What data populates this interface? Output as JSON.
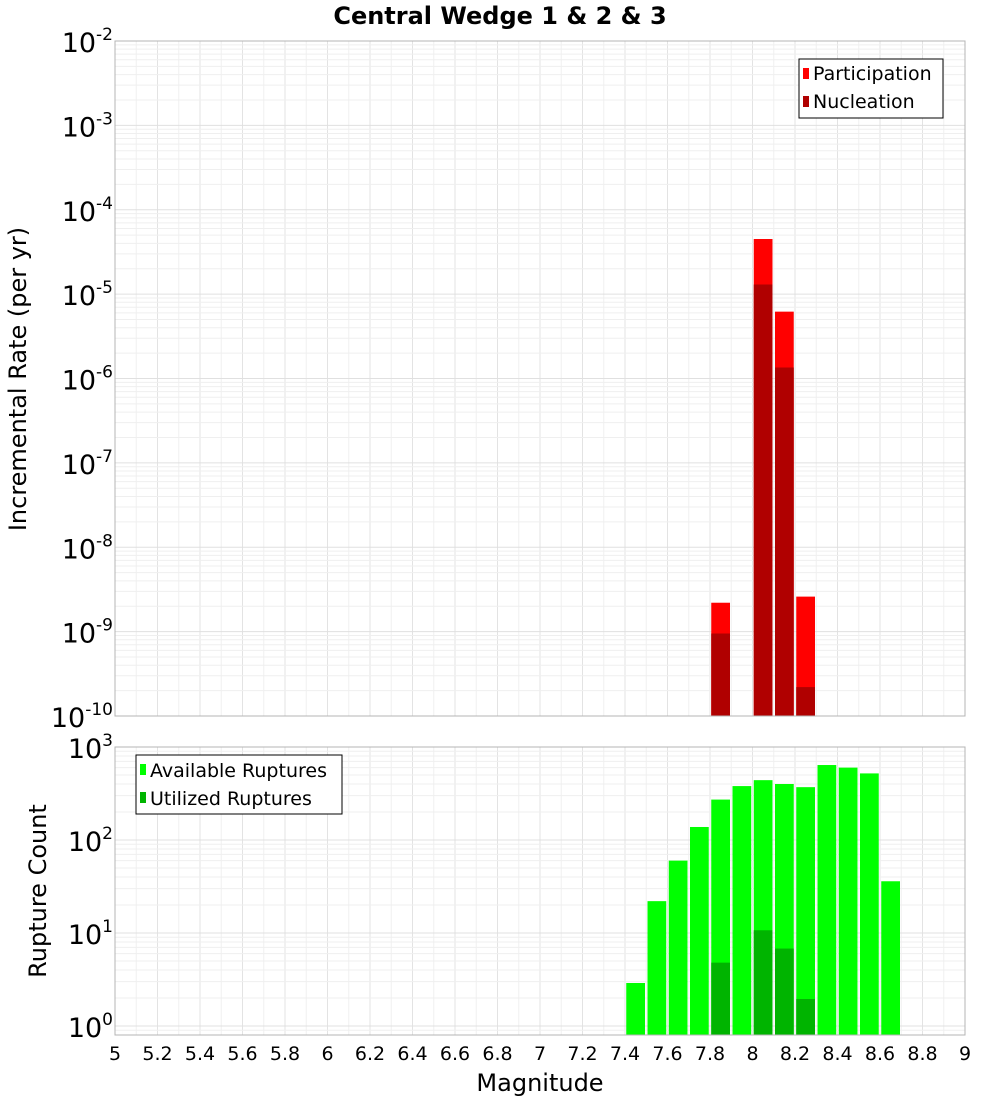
{
  "chart_data": [
    {
      "type": "bar",
      "title": "Central Wedge 1 & 2 & 3",
      "xlabel": "Magnitude",
      "ylabel": "Incremental Rate (per yr)",
      "yscale": "log",
      "xlim": [
        5,
        9
      ],
      "ylim": [
        1e-10,
        0.01
      ],
      "bar_width": 0.1,
      "legend_position": "top-right",
      "y_ticks": [
        {
          "base": "10",
          "exp": "-10",
          "value": 1e-10
        },
        {
          "base": "10",
          "exp": "-9",
          "value": 1e-09
        },
        {
          "base": "10",
          "exp": "-8",
          "value": 1e-08
        },
        {
          "base": "10",
          "exp": "-7",
          "value": 1e-07
        },
        {
          "base": "10",
          "exp": "-6",
          "value": 1e-06
        },
        {
          "base": "10",
          "exp": "-5",
          "value": 1e-05
        },
        {
          "base": "10",
          "exp": "-4",
          "value": 0.0001
        },
        {
          "base": "10",
          "exp": "-3",
          "value": 0.001
        },
        {
          "base": "10",
          "exp": "-2",
          "value": 0.01
        }
      ],
      "series": [
        {
          "name": "Participation",
          "color": "#ff0000",
          "points": [
            {
              "x": 7.85,
              "y": 2.2e-09
            },
            {
              "x": 8.05,
              "y": 4.5e-05
            },
            {
              "x": 8.15,
              "y": 6.2e-06
            },
            {
              "x": 8.25,
              "y": 2.6e-09
            }
          ]
        },
        {
          "name": "Nucleation",
          "color": "#b00000",
          "points": [
            {
              "x": 7.85,
              "y": 9.5e-10
            },
            {
              "x": 8.05,
              "y": 1.3e-05
            },
            {
              "x": 8.15,
              "y": 1.35e-06
            },
            {
              "x": 8.25,
              "y": 2.2e-10
            }
          ]
        }
      ]
    },
    {
      "type": "bar",
      "title": "",
      "xlabel": "Magnitude",
      "ylabel": "Rupture Count",
      "yscale": "log",
      "xlim": [
        5,
        9
      ],
      "ylim": [
        0.8,
        1000
      ],
      "bar_width": 0.1,
      "legend_position": "top-left",
      "y_ticks": [
        {
          "base": "10",
          "exp": "0",
          "value": 1
        },
        {
          "base": "10",
          "exp": "1",
          "value": 10
        },
        {
          "base": "10",
          "exp": "2",
          "value": 100
        },
        {
          "base": "10",
          "exp": "3",
          "value": 1000
        }
      ],
      "series": [
        {
          "name": "Available Ruptures",
          "color": "#00ff00",
          "points": [
            {
              "x": 7.45,
              "y": 2.9
            },
            {
              "x": 7.55,
              "y": 22
            },
            {
              "x": 7.65,
              "y": 60
            },
            {
              "x": 7.75,
              "y": 138
            },
            {
              "x": 7.85,
              "y": 272
            },
            {
              "x": 7.95,
              "y": 380
            },
            {
              "x": 8.05,
              "y": 440
            },
            {
              "x": 8.15,
              "y": 400
            },
            {
              "x": 8.25,
              "y": 370
            },
            {
              "x": 8.35,
              "y": 640
            },
            {
              "x": 8.45,
              "y": 600
            },
            {
              "x": 8.55,
              "y": 520
            },
            {
              "x": 8.65,
              "y": 36
            }
          ]
        },
        {
          "name": "Utilized Ruptures",
          "color": "#00b400",
          "points": [
            {
              "x": 7.85,
              "y": 4.8
            },
            {
              "x": 8.05,
              "y": 10.7
            },
            {
              "x": 8.15,
              "y": 6.8
            },
            {
              "x": 8.25,
              "y": 1.95
            }
          ]
        }
      ]
    }
  ],
  "x_ticks": [
    "5",
    "5.2",
    "5.4",
    "5.6",
    "5.8",
    "6",
    "6.2",
    "6.4",
    "6.6",
    "6.8",
    "7",
    "7.2",
    "7.4",
    "7.6",
    "7.8",
    "8",
    "8.2",
    "8.4",
    "8.6",
    "8.8",
    "9"
  ]
}
